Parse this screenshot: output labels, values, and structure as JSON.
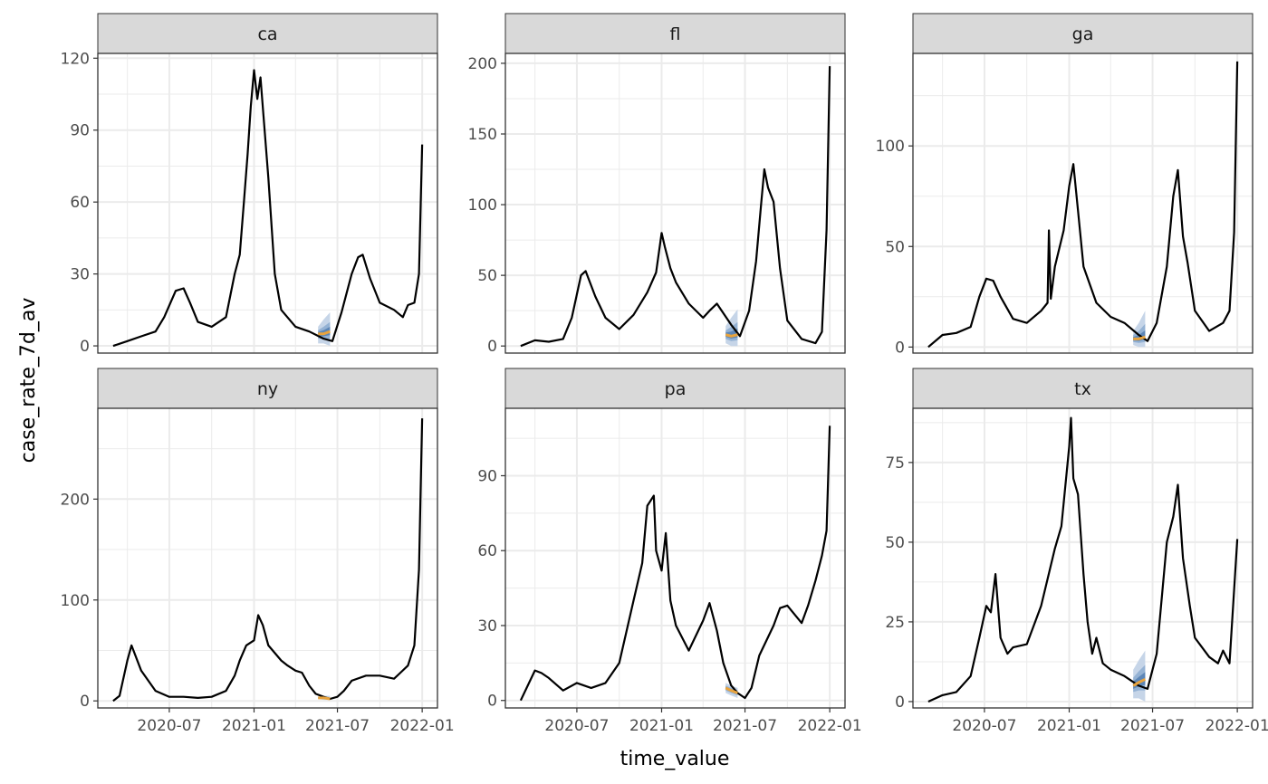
{
  "chart_data": {
    "type": "line",
    "layout": "facet_wrap 2 rows x 3 columns, free y scales",
    "xlabel": "time_value",
    "ylabel": "case_rate_7d_av",
    "x_ticks": [
      "2020-07",
      "2021-01",
      "2021-07",
      "2022-01"
    ],
    "x_range": [
      "2020-03-01",
      "2022-01-01"
    ],
    "grid": true,
    "colors": {
      "line": "#000000",
      "forecast_median": "#e8a33d",
      "band_outer": "#c6d5e8",
      "band_mid": "#94b2d4",
      "band_inner": "#5c86b7",
      "strip_fill": "#d9d9d9",
      "grid": "#ebebeb"
    },
    "panels": [
      {
        "label": "ca",
        "ylim": [
          -3,
          122
        ],
        "y_ticks": [
          0,
          30,
          60,
          90,
          120
        ],
        "x": [
          "2020-03-01",
          "2020-04-01",
          "2020-05-01",
          "2020-06-01",
          "2020-06-20",
          "2020-07-15",
          "2020-08-01",
          "2020-08-15",
          "2020-09-01",
          "2020-10-01",
          "2020-11-01",
          "2020-11-20",
          "2020-12-01",
          "2020-12-10",
          "2020-12-18",
          "2020-12-25",
          "2021-01-01",
          "2021-01-08",
          "2021-01-15",
          "2021-02-01",
          "2021-02-15",
          "2021-03-01",
          "2021-04-01",
          "2021-05-01",
          "2021-06-01",
          "2021-06-20",
          "2021-07-10",
          "2021-08-01",
          "2021-08-15",
          "2021-08-25",
          "2021-09-10",
          "2021-10-01",
          "2021-11-01",
          "2021-11-20",
          "2021-12-01",
          "2021-12-15",
          "2021-12-25",
          "2022-01-01"
        ],
        "y": [
          0,
          2,
          4,
          6,
          12,
          23,
          24,
          18,
          10,
          8,
          12,
          30,
          38,
          60,
          80,
          100,
          115,
          103,
          112,
          70,
          30,
          15,
          8,
          6,
          3,
          2,
          14,
          30,
          37,
          38,
          28,
          18,
          15,
          12,
          17,
          18,
          30,
          84
        ],
        "forecast": {
          "x": [
            "2021-05-20",
            "2021-06-01",
            "2021-06-15"
          ],
          "median": [
            5,
            5,
            6
          ],
          "lo95": [
            1,
            1,
            0
          ],
          "hi95": [
            8,
            11,
            14
          ]
        }
      },
      {
        "label": "fl",
        "ylim": [
          -5,
          207
        ],
        "y_ticks": [
          0,
          50,
          100,
          150,
          200
        ],
        "x": [
          "2020-03-01",
          "2020-04-01",
          "2020-05-01",
          "2020-06-01",
          "2020-06-20",
          "2020-07-10",
          "2020-07-20",
          "2020-08-10",
          "2020-09-01",
          "2020-10-01",
          "2020-11-01",
          "2020-12-01",
          "2020-12-20",
          "2021-01-01",
          "2021-01-08",
          "2021-01-20",
          "2021-02-01",
          "2021-03-01",
          "2021-04-01",
          "2021-04-15",
          "2021-05-01",
          "2021-06-01",
          "2021-06-20",
          "2021-07-10",
          "2021-07-25",
          "2021-08-05",
          "2021-08-12",
          "2021-08-20",
          "2021-09-01",
          "2021-09-15",
          "2021-10-01",
          "2021-11-01",
          "2021-12-01",
          "2021-12-15",
          "2021-12-25",
          "2022-01-01"
        ],
        "y": [
          0,
          4,
          3,
          5,
          20,
          50,
          53,
          35,
          20,
          12,
          22,
          38,
          52,
          80,
          70,
          55,
          45,
          30,
          20,
          25,
          30,
          15,
          7,
          25,
          60,
          100,
          125,
          112,
          102,
          55,
          18,
          5,
          2,
          10,
          82,
          198
        ],
        "forecast": {
          "x": [
            "2021-05-20",
            "2021-06-01",
            "2021-06-15"
          ],
          "median": [
            8,
            7,
            8
          ],
          "lo95": [
            2,
            0,
            0
          ],
          "hi95": [
            14,
            20,
            26
          ]
        }
      },
      {
        "label": "ga",
        "ylim": [
          -3,
          146
        ],
        "y_ticks": [
          0,
          50,
          100
        ],
        "x": [
          "2020-03-01",
          "2020-04-01",
          "2020-05-01",
          "2020-06-01",
          "2020-06-20",
          "2020-07-05",
          "2020-07-20",
          "2020-08-05",
          "2020-09-01",
          "2020-10-01",
          "2020-11-01",
          "2020-11-15",
          "2020-11-18",
          "2020-11-22",
          "2020-12-01",
          "2020-12-20",
          "2021-01-01",
          "2021-01-10",
          "2021-01-20",
          "2021-02-01",
          "2021-03-01",
          "2021-04-01",
          "2021-05-01",
          "2021-06-01",
          "2021-06-20",
          "2021-07-10",
          "2021-08-01",
          "2021-08-15",
          "2021-08-25",
          "2021-09-05",
          "2021-09-15",
          "2021-10-01",
          "2021-11-01",
          "2021-12-01",
          "2021-12-15",
          "2021-12-25",
          "2022-01-01"
        ],
        "y": [
          0,
          6,
          7,
          10,
          25,
          34,
          33,
          25,
          14,
          12,
          18,
          22,
          58,
          24,
          40,
          58,
          80,
          91,
          68,
          40,
          22,
          15,
          12,
          6,
          3,
          12,
          40,
          75,
          88,
          55,
          42,
          18,
          8,
          12,
          18,
          57,
          142
        ],
        "forecast": {
          "x": [
            "2021-05-20",
            "2021-06-01",
            "2021-06-15"
          ],
          "median": [
            4,
            4,
            5
          ],
          "lo95": [
            1,
            0,
            0
          ],
          "hi95": [
            8,
            12,
            18
          ]
        }
      },
      {
        "label": "ny",
        "ylim": [
          -7,
          290
        ],
        "y_ticks": [
          0,
          100,
          200
        ],
        "x": [
          "2020-03-01",
          "2020-03-15",
          "2020-04-01",
          "2020-04-10",
          "2020-05-01",
          "2020-06-01",
          "2020-07-01",
          "2020-08-01",
          "2020-09-01",
          "2020-10-01",
          "2020-11-01",
          "2020-11-20",
          "2020-12-01",
          "2020-12-15",
          "2021-01-01",
          "2021-01-10",
          "2021-01-20",
          "2021-02-01",
          "2021-03-01",
          "2021-03-15",
          "2021-04-01",
          "2021-04-15",
          "2021-05-01",
          "2021-05-15",
          "2021-06-01",
          "2021-06-15",
          "2021-07-01",
          "2021-07-15",
          "2021-08-01",
          "2021-09-01",
          "2021-10-01",
          "2021-11-01",
          "2021-11-15",
          "2021-12-01",
          "2021-12-15",
          "2021-12-25",
          "2022-01-01"
        ],
        "y": [
          0,
          5,
          40,
          55,
          30,
          10,
          4,
          4,
          3,
          4,
          10,
          25,
          40,
          55,
          60,
          85,
          75,
          55,
          40,
          35,
          30,
          28,
          15,
          7,
          4,
          2,
          4,
          10,
          20,
          25,
          25,
          22,
          28,
          35,
          55,
          130,
          280
        ],
        "forecast": {
          "x": [
            "2021-05-20",
            "2021-06-01",
            "2021-06-15"
          ],
          "median": [
            3,
            3,
            2
          ],
          "lo95": [
            2,
            1,
            1
          ],
          "hi95": [
            4,
            5,
            5
          ]
        }
      },
      {
        "label": "pa",
        "ylim": [
          -3,
          117
        ],
        "y_ticks": [
          0,
          30,
          60,
          90
        ],
        "x": [
          "2020-03-01",
          "2020-04-01",
          "2020-04-15",
          "2020-05-01",
          "2020-06-01",
          "2020-07-01",
          "2020-08-01",
          "2020-09-01",
          "2020-10-01",
          "2020-11-01",
          "2020-11-20",
          "2020-12-01",
          "2020-12-15",
          "2020-12-20",
          "2021-01-01",
          "2021-01-10",
          "2021-01-20",
          "2021-02-01",
          "2021-03-01",
          "2021-04-01",
          "2021-04-15",
          "2021-05-01",
          "2021-05-15",
          "2021-06-01",
          "2021-06-15",
          "2021-07-01",
          "2021-07-15",
          "2021-08-01",
          "2021-09-01",
          "2021-09-15",
          "2021-10-01",
          "2021-11-01",
          "2021-11-15",
          "2021-12-01",
          "2021-12-15",
          "2021-12-25",
          "2022-01-01"
        ],
        "y": [
          0,
          12,
          11,
          9,
          4,
          7,
          5,
          7,
          15,
          40,
          55,
          78,
          82,
          60,
          52,
          67,
          40,
          30,
          20,
          32,
          39,
          28,
          15,
          6,
          3,
          1,
          5,
          18,
          30,
          37,
          38,
          31,
          38,
          48,
          58,
          68,
          110
        ],
        "forecast": {
          "x": [
            "2021-05-20",
            "2021-06-01",
            "2021-06-15"
          ],
          "median": [
            5,
            4,
            3
          ],
          "lo95": [
            3,
            2,
            1
          ],
          "hi95": [
            7,
            6,
            5
          ]
        }
      },
      {
        "label": "tx",
        "ylim": [
          -2,
          92
        ],
        "y_ticks": [
          0,
          25,
          50,
          75
        ],
        "x": [
          "2020-03-01",
          "2020-04-01",
          "2020-05-01",
          "2020-06-01",
          "2020-06-20",
          "2020-07-05",
          "2020-07-15",
          "2020-07-25",
          "2020-08-05",
          "2020-08-20",
          "2020-09-01",
          "2020-10-01",
          "2020-11-01",
          "2020-12-01",
          "2020-12-15",
          "2021-01-01",
          "2021-01-05",
          "2021-01-10",
          "2021-01-20",
          "2021-02-01",
          "2021-02-10",
          "2021-02-20",
          "2021-03-01",
          "2021-03-15",
          "2021-04-01",
          "2021-05-01",
          "2021-06-01",
          "2021-06-20",
          "2021-07-10",
          "2021-08-01",
          "2021-08-15",
          "2021-08-25",
          "2021-09-05",
          "2021-09-20",
          "2021-10-01",
          "2021-11-01",
          "2021-11-20",
          "2021-12-01",
          "2021-12-15",
          "2022-01-01"
        ],
        "y": [
          0,
          2,
          3,
          8,
          20,
          30,
          28,
          40,
          20,
          15,
          17,
          18,
          30,
          48,
          55,
          80,
          89,
          70,
          65,
          40,
          25,
          15,
          20,
          12,
          10,
          8,
          5,
          4,
          15,
          50,
          58,
          68,
          45,
          30,
          20,
          14,
          12,
          16,
          12,
          51
        ],
        "forecast": {
          "x": [
            "2021-05-20",
            "2021-06-01",
            "2021-06-15"
          ],
          "median": [
            5,
            6,
            7
          ],
          "lo95": [
            1,
            1,
            0
          ],
          "hi95": [
            10,
            13,
            16
          ]
        }
      }
    ]
  }
}
